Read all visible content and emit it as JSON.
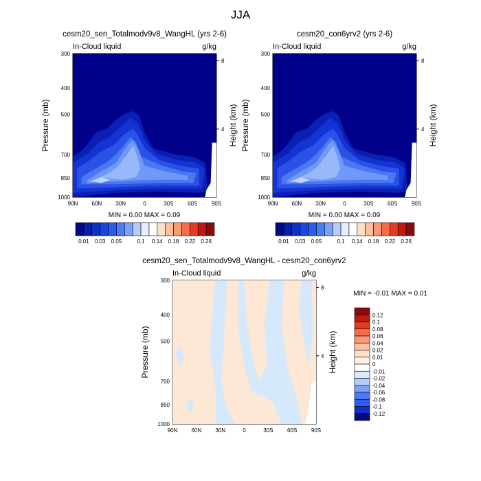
{
  "figure": {
    "title": "JJA"
  },
  "colors": {
    "contour_fill": [
      "#00008b",
      "#0a20b4",
      "#1433d2",
      "#2a52e6",
      "#4a78f2",
      "#6f98f7",
      "#98b8fa",
      "#c2d6fc",
      "#eaf0fe",
      "#fde6d6"
    ],
    "diff_negative": "#d6e8fb",
    "diff_positive": "#fde7d5",
    "diff_blank": "#ffffff"
  },
  "chart_data": [
    {
      "type": "heatmap",
      "title": "cesm20_sen_Totalmodv9v8_WangHL (yrs 2-6)",
      "left_label": "In-Cloud liquid",
      "right_label": "g/kg",
      "ylabel": "Pressure (mb)",
      "y2label": "Height (km)",
      "x_ticks": [
        "90N",
        "60N",
        "30N",
        "0",
        "30S",
        "60S",
        "90S"
      ],
      "x_tick_lat": [
        90,
        60,
        30,
        0,
        -30,
        -60,
        -90
      ],
      "y_ticks": [
        "300",
        "400",
        "500",
        "700",
        "850",
        "1000"
      ],
      "y_tick_values": [
        300,
        400,
        500,
        700,
        850,
        1000
      ],
      "y2_ticks": [
        "8",
        "4"
      ],
      "y2_tick_values": [
        8,
        4
      ],
      "ylim": [
        1000,
        300
      ],
      "min_max_text": "MIN =   0.00   MAX =   0.09",
      "min": 0.0,
      "max": 0.09,
      "colorbar_labels": [
        "0.01",
        "0.03",
        "0.05",
        "0.1",
        "0.14",
        "0.18",
        "0.22",
        "0.26"
      ],
      "colorbar_levels": [
        0.01,
        0.02,
        0.03,
        0.04,
        0.05,
        0.06,
        0.08,
        0.1,
        0.12,
        0.14,
        0.16,
        0.18,
        0.2,
        0.22,
        0.24,
        0.26
      ],
      "colorbar_colors": [
        "#030a87",
        "#0a1fa6",
        "#1032c4",
        "#1846df",
        "#2b5ef0",
        "#4a7cf5",
        "#7aa1f7",
        "#b6cdfa",
        "#e7effd",
        "#ffffff",
        "#fde0c8",
        "#fcc0a0",
        "#fb9874",
        "#f76c48",
        "#e43c22",
        "#c01a0f",
        "#8e0a0a"
      ]
    },
    {
      "type": "heatmap",
      "title": "cesm20_con6yrv2 (yrs 2-6)",
      "left_label": "In-Cloud liquid",
      "right_label": "g/kg",
      "ylabel": "Pressure (mb)",
      "y2label": "Height (km)",
      "x_ticks": [
        "90N",
        "60N",
        "30N",
        "0",
        "30S",
        "60S",
        "90S"
      ],
      "x_tick_lat": [
        90,
        60,
        30,
        0,
        -30,
        -60,
        -90
      ],
      "y_ticks": [
        "300",
        "400",
        "500",
        "700",
        "850",
        "1000"
      ],
      "y_tick_values": [
        300,
        400,
        500,
        700,
        850,
        1000
      ],
      "y2_ticks": [
        "8",
        "4"
      ],
      "y2_tick_values": [
        8,
        4
      ],
      "ylim": [
        1000,
        300
      ],
      "min_max_text": "MIN =   0.00   MAX =   0.09",
      "min": 0.0,
      "max": 0.09,
      "colorbar_labels": [
        "0.01",
        "0.03",
        "0.05",
        "0.1",
        "0.14",
        "0.18",
        "0.22",
        "0.26"
      ],
      "colorbar_levels": [
        0.01,
        0.02,
        0.03,
        0.04,
        0.05,
        0.06,
        0.08,
        0.1,
        0.12,
        0.14,
        0.16,
        0.18,
        0.2,
        0.22,
        0.24,
        0.26
      ],
      "colorbar_colors": [
        "#030a87",
        "#0a1fa6",
        "#1032c4",
        "#1846df",
        "#2b5ef0",
        "#4a7cf5",
        "#7aa1f7",
        "#b6cdfa",
        "#e7effd",
        "#ffffff",
        "#fde0c8",
        "#fcc0a0",
        "#fb9874",
        "#f76c48",
        "#e43c22",
        "#c01a0f",
        "#8e0a0a"
      ]
    },
    {
      "type": "heatmap",
      "title": "cesm20_sen_Totalmodv9v8_WangHL - cesm20_con6yrv2",
      "left_label": "In-Cloud liquid",
      "right_label": "g/kg",
      "ylabel": "Pressure (mb)",
      "y2label": "Height (km)",
      "x_ticks": [
        "90N",
        "60N",
        "30N",
        "0",
        "30S",
        "60S",
        "90S"
      ],
      "x_tick_lat": [
        90,
        60,
        30,
        0,
        -30,
        -60,
        -90
      ],
      "y_ticks": [
        "300",
        "400",
        "500",
        "700",
        "850",
        "1000"
      ],
      "y_tick_values": [
        300,
        400,
        500,
        700,
        850,
        1000
      ],
      "y2_ticks": [
        "8",
        "4"
      ],
      "y2_tick_values": [
        8,
        4
      ],
      "ylim": [
        1000,
        300
      ],
      "min_max_text": "MIN =  -0.01  MAX =   0.01",
      "min": -0.01,
      "max": 0.01,
      "colorbar_labels": [
        "0.12",
        "0.1",
        "0.08",
        "0.06",
        "0.04",
        "0.02",
        "0.01",
        "0",
        "-0.01",
        "-0.02",
        "-0.04",
        "-0.06",
        "-0.08",
        "-0.1",
        "-0.12"
      ],
      "colorbar_levels": [
        0.12,
        0.1,
        0.08,
        0.06,
        0.04,
        0.02,
        0.01,
        0,
        -0.01,
        -0.02,
        -0.04,
        -0.06,
        -0.08,
        -0.1,
        -0.12
      ],
      "colorbar_colors": [
        "#8e0a0a",
        "#c01a0f",
        "#e43c22",
        "#f76c48",
        "#fb9874",
        "#fcc0a0",
        "#fde0c8",
        "#fdf0e6",
        "#ffffff",
        "#dceafc",
        "#b6cdfa",
        "#7aa1f7",
        "#4a7cf5",
        "#2b5ef0",
        "#1032c4",
        "#030a87"
      ]
    }
  ]
}
